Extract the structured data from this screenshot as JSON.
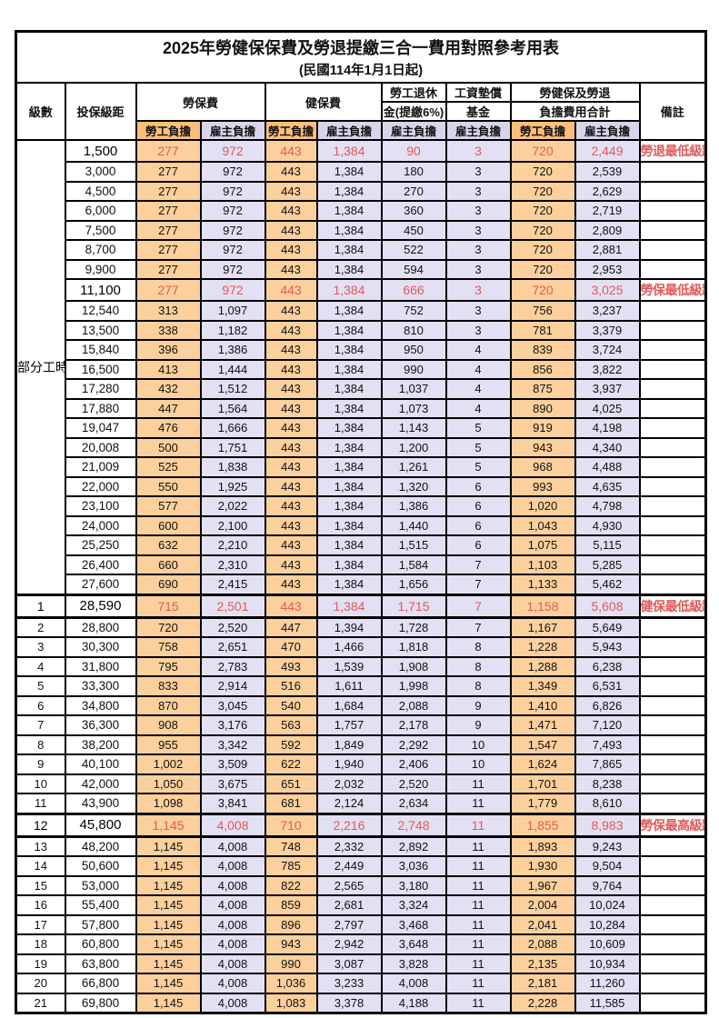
{
  "title": "2025年勞健保保費及勞退提繳三合一費用對照參考用表",
  "subtitle": "(民國114年1月1日起)",
  "part_time_label": "部分工時",
  "header": {
    "level": "級數",
    "salary_bracket": "投保級距",
    "labor_insurance": "勞保費",
    "health_insurance": "健保費",
    "pension_line1": "勞工退休",
    "pension_line2": "金(提繳6%)",
    "wage_fund_line1": "工資墊償",
    "wage_fund_line2": "基金",
    "total_line1": "勞健保及勞退",
    "total_line2": "負擔費用合計",
    "note": "備註",
    "employee_share": "勞工負擔",
    "employer_share": "雇主負擔"
  },
  "colors": {
    "employee_header_bg": "#FBBE7B",
    "employer_header_bg": "#D8D5EB",
    "employee_cell_bg": "#FCD09C",
    "employer_cell_bg": "#E2E0F2",
    "highlight_red": "#E05A5A",
    "border": "#000000"
  },
  "rows": [
    {
      "level": "",
      "salary": "1,500",
      "labor_emp": "277",
      "labor_er": "972",
      "health_emp": "443",
      "health_er": "1,384",
      "pension_er": "90",
      "fund_er": "3",
      "total_emp": "720",
      "total_er": "2,449",
      "note": "勞退最低級距"
    },
    {
      "level": "",
      "salary": "3,000",
      "labor_emp": "277",
      "labor_er": "972",
      "health_emp": "443",
      "health_er": "1,384",
      "pension_er": "180",
      "fund_er": "3",
      "total_emp": "720",
      "total_er": "2,539",
      "note": ""
    },
    {
      "level": "",
      "salary": "4,500",
      "labor_emp": "277",
      "labor_er": "972",
      "health_emp": "443",
      "health_er": "1,384",
      "pension_er": "270",
      "fund_er": "3",
      "total_emp": "720",
      "total_er": "2,629",
      "note": ""
    },
    {
      "level": "",
      "salary": "6,000",
      "labor_emp": "277",
      "labor_er": "972",
      "health_emp": "443",
      "health_er": "1,384",
      "pension_er": "360",
      "fund_er": "3",
      "total_emp": "720",
      "total_er": "2,719",
      "note": ""
    },
    {
      "level": "",
      "salary": "7,500",
      "labor_emp": "277",
      "labor_er": "972",
      "health_emp": "443",
      "health_er": "1,384",
      "pension_er": "450",
      "fund_er": "3",
      "total_emp": "720",
      "total_er": "2,809",
      "note": ""
    },
    {
      "level": "",
      "salary": "8,700",
      "labor_emp": "277",
      "labor_er": "972",
      "health_emp": "443",
      "health_er": "1,384",
      "pension_er": "522",
      "fund_er": "3",
      "total_emp": "720",
      "total_er": "2,881",
      "note": ""
    },
    {
      "level": "",
      "salary": "9,900",
      "labor_emp": "277",
      "labor_er": "972",
      "health_emp": "443",
      "health_er": "1,384",
      "pension_er": "594",
      "fund_er": "3",
      "total_emp": "720",
      "total_er": "2,953",
      "note": ""
    },
    {
      "level": "",
      "salary": "11,100",
      "labor_emp": "277",
      "labor_er": "972",
      "health_emp": "443",
      "health_er": "1,384",
      "pension_er": "666",
      "fund_er": "3",
      "total_emp": "720",
      "total_er": "3,025",
      "note": "勞保最低級距"
    },
    {
      "level": "",
      "salary": "12,540",
      "labor_emp": "313",
      "labor_er": "1,097",
      "health_emp": "443",
      "health_er": "1,384",
      "pension_er": "752",
      "fund_er": "3",
      "total_emp": "756",
      "total_er": "3,237",
      "note": ""
    },
    {
      "level": "",
      "salary": "13,500",
      "labor_emp": "338",
      "labor_er": "1,182",
      "health_emp": "443",
      "health_er": "1,384",
      "pension_er": "810",
      "fund_er": "3",
      "total_emp": "781",
      "total_er": "3,379",
      "note": ""
    },
    {
      "level": "",
      "salary": "15,840",
      "labor_emp": "396",
      "labor_er": "1,386",
      "health_emp": "443",
      "health_er": "1,384",
      "pension_er": "950",
      "fund_er": "4",
      "total_emp": "839",
      "total_er": "3,724",
      "note": ""
    },
    {
      "level": "",
      "salary": "16,500",
      "labor_emp": "413",
      "labor_er": "1,444",
      "health_emp": "443",
      "health_er": "1,384",
      "pension_er": "990",
      "fund_er": "4",
      "total_emp": "856",
      "total_er": "3,822",
      "note": ""
    },
    {
      "level": "",
      "salary": "17,280",
      "labor_emp": "432",
      "labor_er": "1,512",
      "health_emp": "443",
      "health_er": "1,384",
      "pension_er": "1,037",
      "fund_er": "4",
      "total_emp": "875",
      "total_er": "3,937",
      "note": ""
    },
    {
      "level": "",
      "salary": "17,880",
      "labor_emp": "447",
      "labor_er": "1,564",
      "health_emp": "443",
      "health_er": "1,384",
      "pension_er": "1,073",
      "fund_er": "4",
      "total_emp": "890",
      "total_er": "4,025",
      "note": ""
    },
    {
      "level": "",
      "salary": "19,047",
      "labor_emp": "476",
      "labor_er": "1,666",
      "health_emp": "443",
      "health_er": "1,384",
      "pension_er": "1,143",
      "fund_er": "5",
      "total_emp": "919",
      "total_er": "4,198",
      "note": ""
    },
    {
      "level": "",
      "salary": "20,008",
      "labor_emp": "500",
      "labor_er": "1,751",
      "health_emp": "443",
      "health_er": "1,384",
      "pension_er": "1,200",
      "fund_er": "5",
      "total_emp": "943",
      "total_er": "4,340",
      "note": ""
    },
    {
      "level": "",
      "salary": "21,009",
      "labor_emp": "525",
      "labor_er": "1,838",
      "health_emp": "443",
      "health_er": "1,384",
      "pension_er": "1,261",
      "fund_er": "5",
      "total_emp": "968",
      "total_er": "4,488",
      "note": ""
    },
    {
      "level": "",
      "salary": "22,000",
      "labor_emp": "550",
      "labor_er": "1,925",
      "health_emp": "443",
      "health_er": "1,384",
      "pension_er": "1,320",
      "fund_er": "6",
      "total_emp": "993",
      "total_er": "4,635",
      "note": ""
    },
    {
      "level": "",
      "salary": "23,100",
      "labor_emp": "577",
      "labor_er": "2,022",
      "health_emp": "443",
      "health_er": "1,384",
      "pension_er": "1,386",
      "fund_er": "6",
      "total_emp": "1,020",
      "total_er": "4,798",
      "note": ""
    },
    {
      "level": "",
      "salary": "24,000",
      "labor_emp": "600",
      "labor_er": "2,100",
      "health_emp": "443",
      "health_er": "1,384",
      "pension_er": "1,440",
      "fund_er": "6",
      "total_emp": "1,043",
      "total_er": "4,930",
      "note": ""
    },
    {
      "level": "",
      "salary": "25,250",
      "labor_emp": "632",
      "labor_er": "2,210",
      "health_emp": "443",
      "health_er": "1,384",
      "pension_er": "1,515",
      "fund_er": "6",
      "total_emp": "1,075",
      "total_er": "5,115",
      "note": ""
    },
    {
      "level": "",
      "salary": "26,400",
      "labor_emp": "660",
      "labor_er": "2,310",
      "health_emp": "443",
      "health_er": "1,384",
      "pension_er": "1,584",
      "fund_er": "7",
      "total_emp": "1,103",
      "total_er": "5,285",
      "note": ""
    },
    {
      "level": "",
      "salary": "27,600",
      "labor_emp": "690",
      "labor_er": "2,415",
      "health_emp": "443",
      "health_er": "1,384",
      "pension_er": "1,656",
      "fund_er": "7",
      "total_emp": "1,133",
      "total_er": "5,462",
      "note": ""
    },
    {
      "level": "1",
      "salary": "28,590",
      "labor_emp": "715",
      "labor_er": "2,501",
      "health_emp": "443",
      "health_er": "1,384",
      "pension_er": "1,715",
      "fund_er": "7",
      "total_emp": "1,158",
      "total_er": "5,608",
      "note": "健保最低級距"
    },
    {
      "level": "2",
      "salary": "28,800",
      "labor_emp": "720",
      "labor_er": "2,520",
      "health_emp": "447",
      "health_er": "1,394",
      "pension_er": "1,728",
      "fund_er": "7",
      "total_emp": "1,167",
      "total_er": "5,649",
      "note": ""
    },
    {
      "level": "3",
      "salary": "30,300",
      "labor_emp": "758",
      "labor_er": "2,651",
      "health_emp": "470",
      "health_er": "1,466",
      "pension_er": "1,818",
      "fund_er": "8",
      "total_emp": "1,228",
      "total_er": "5,943",
      "note": ""
    },
    {
      "level": "4",
      "salary": "31,800",
      "labor_emp": "795",
      "labor_er": "2,783",
      "health_emp": "493",
      "health_er": "1,539",
      "pension_er": "1,908",
      "fund_er": "8",
      "total_emp": "1,288",
      "total_er": "6,238",
      "note": ""
    },
    {
      "level": "5",
      "salary": "33,300",
      "labor_emp": "833",
      "labor_er": "2,914",
      "health_emp": "516",
      "health_er": "1,611",
      "pension_er": "1,998",
      "fund_er": "8",
      "total_emp": "1,349",
      "total_er": "6,531",
      "note": ""
    },
    {
      "level": "6",
      "salary": "34,800",
      "labor_emp": "870",
      "labor_er": "3,045",
      "health_emp": "540",
      "health_er": "1,684",
      "pension_er": "2,088",
      "fund_er": "9",
      "total_emp": "1,410",
      "total_er": "6,826",
      "note": ""
    },
    {
      "level": "7",
      "salary": "36,300",
      "labor_emp": "908",
      "labor_er": "3,176",
      "health_emp": "563",
      "health_er": "1,757",
      "pension_er": "2,178",
      "fund_er": "9",
      "total_emp": "1,471",
      "total_er": "7,120",
      "note": ""
    },
    {
      "level": "8",
      "salary": "38,200",
      "labor_emp": "955",
      "labor_er": "3,342",
      "health_emp": "592",
      "health_er": "1,849",
      "pension_er": "2,292",
      "fund_er": "10",
      "total_emp": "1,547",
      "total_er": "7,493",
      "note": ""
    },
    {
      "level": "9",
      "salary": "40,100",
      "labor_emp": "1,002",
      "labor_er": "3,509",
      "health_emp": "622",
      "health_er": "1,940",
      "pension_er": "2,406",
      "fund_er": "10",
      "total_emp": "1,624",
      "total_er": "7,865",
      "note": ""
    },
    {
      "level": "10",
      "salary": "42,000",
      "labor_emp": "1,050",
      "labor_er": "3,675",
      "health_emp": "651",
      "health_er": "2,032",
      "pension_er": "2,520",
      "fund_er": "11",
      "total_emp": "1,701",
      "total_er": "8,238",
      "note": ""
    },
    {
      "level": "11",
      "salary": "43,900",
      "labor_emp": "1,098",
      "labor_er": "3,841",
      "health_emp": "681",
      "health_er": "2,124",
      "pension_er": "2,634",
      "fund_er": "11",
      "total_emp": "1,779",
      "total_er": "8,610",
      "note": ""
    },
    {
      "level": "12",
      "salary": "45,800",
      "labor_emp": "1,145",
      "labor_er": "4,008",
      "health_emp": "710",
      "health_er": "2,216",
      "pension_er": "2,748",
      "fund_er": "11",
      "total_emp": "1,855",
      "total_er": "8,983",
      "note": "勞保最高級距"
    },
    {
      "level": "13",
      "salary": "48,200",
      "labor_emp": "1,145",
      "labor_er": "4,008",
      "health_emp": "748",
      "health_er": "2,332",
      "pension_er": "2,892",
      "fund_er": "11",
      "total_emp": "1,893",
      "total_er": "9,243",
      "note": ""
    },
    {
      "level": "14",
      "salary": "50,600",
      "labor_emp": "1,145",
      "labor_er": "4,008",
      "health_emp": "785",
      "health_er": "2,449",
      "pension_er": "3,036",
      "fund_er": "11",
      "total_emp": "1,930",
      "total_er": "9,504",
      "note": ""
    },
    {
      "level": "15",
      "salary": "53,000",
      "labor_emp": "1,145",
      "labor_er": "4,008",
      "health_emp": "822",
      "health_er": "2,565",
      "pension_er": "3,180",
      "fund_er": "11",
      "total_emp": "1,967",
      "total_er": "9,764",
      "note": ""
    },
    {
      "level": "16",
      "salary": "55,400",
      "labor_emp": "1,145",
      "labor_er": "4,008",
      "health_emp": "859",
      "health_er": "2,681",
      "pension_er": "3,324",
      "fund_er": "11",
      "total_emp": "2,004",
      "total_er": "10,024",
      "note": ""
    },
    {
      "level": "17",
      "salary": "57,800",
      "labor_emp": "1,145",
      "labor_er": "4,008",
      "health_emp": "896",
      "health_er": "2,797",
      "pension_er": "3,468",
      "fund_er": "11",
      "total_emp": "2,041",
      "total_er": "10,284",
      "note": ""
    },
    {
      "level": "18",
      "salary": "60,800",
      "labor_emp": "1,145",
      "labor_er": "4,008",
      "health_emp": "943",
      "health_er": "2,942",
      "pension_er": "3,648",
      "fund_er": "11",
      "total_emp": "2,088",
      "total_er": "10,609",
      "note": ""
    },
    {
      "level": "19",
      "salary": "63,800",
      "labor_emp": "1,145",
      "labor_er": "4,008",
      "health_emp": "990",
      "health_er": "3,087",
      "pension_er": "3,828",
      "fund_er": "11",
      "total_emp": "2,135",
      "total_er": "10,934",
      "note": ""
    },
    {
      "level": "20",
      "salary": "66,800",
      "labor_emp": "1,145",
      "labor_er": "4,008",
      "health_emp": "1,036",
      "health_er": "3,233",
      "pension_er": "4,008",
      "fund_er": "11",
      "total_emp": "2,181",
      "total_er": "11,260",
      "note": ""
    },
    {
      "level": "21",
      "salary": "69,800",
      "labor_emp": "1,145",
      "labor_er": "4,008",
      "health_emp": "1,083",
      "health_er": "3,378",
      "pension_er": "4,188",
      "fund_er": "11",
      "total_emp": "2,228",
      "total_er": "11,585",
      "note": ""
    }
  ]
}
